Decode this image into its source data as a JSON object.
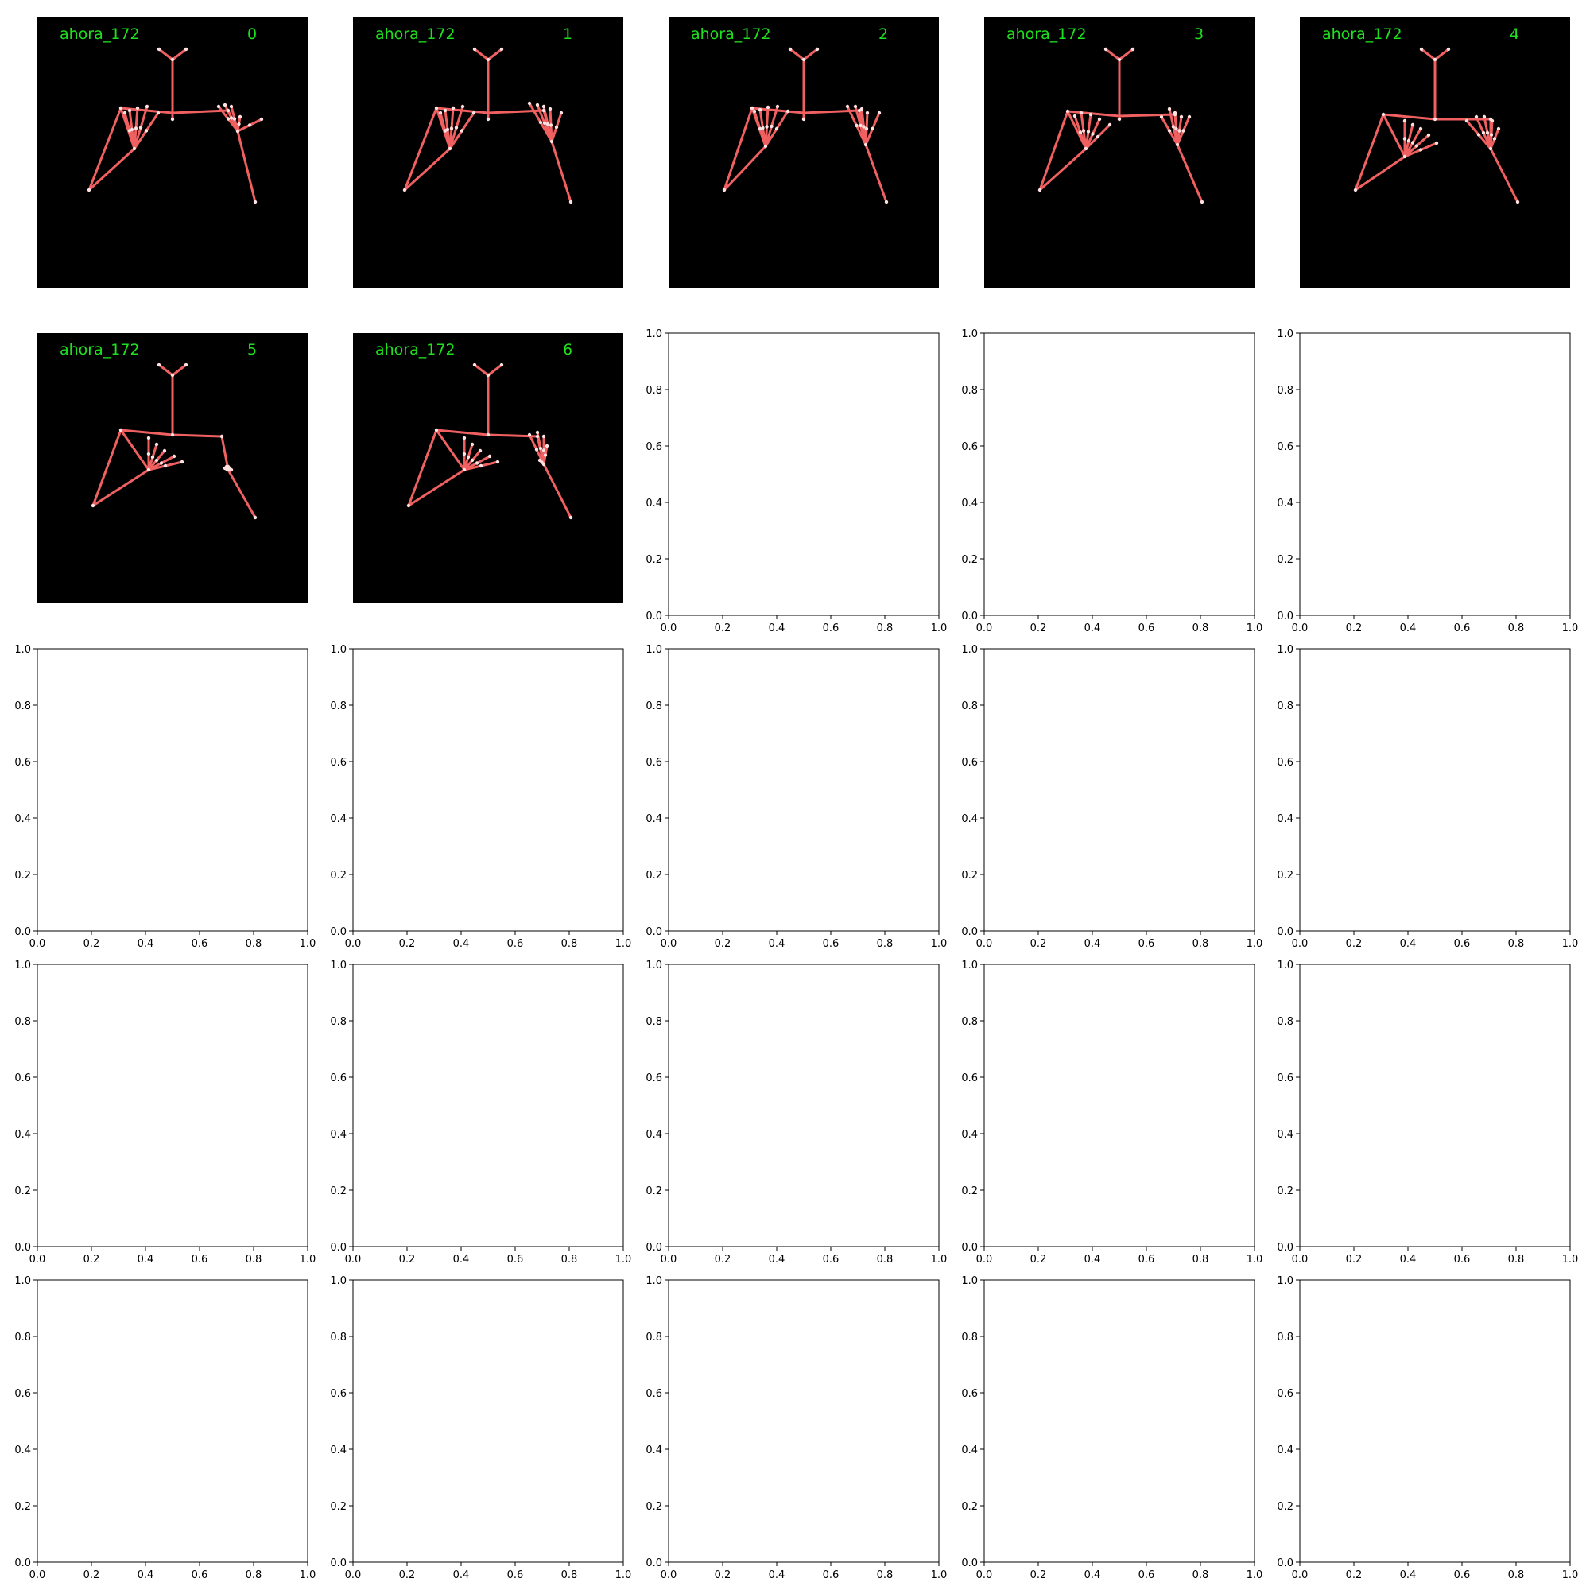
{
  "figure": {
    "background": "#ffffff",
    "grid": {
      "rows": 5,
      "cols": 5
    }
  },
  "frames": [
    {
      "label": "ahora_172",
      "index": "0"
    },
    {
      "label": "ahora_172",
      "index": "1"
    },
    {
      "label": "ahora_172",
      "index": "2"
    },
    {
      "label": "ahora_172",
      "index": "3"
    },
    {
      "label": "ahora_172",
      "index": "4"
    },
    {
      "label": "ahora_172",
      "index": "5"
    },
    {
      "label": "ahora_172",
      "index": "6"
    }
  ],
  "colors": {
    "frame_bg": "#000000",
    "label_text": "#1ee11e",
    "skeleton": "#f06060",
    "joint": "#ffe0e0",
    "axis": "#000000"
  },
  "chart_data": {
    "type": "image-grid",
    "empty_axes": {
      "xlim": [
        0,
        1
      ],
      "ylim": [
        0,
        1
      ],
      "ticks": [
        "0.0",
        "0.2",
        "0.4",
        "0.6",
        "0.8",
        "1.0"
      ],
      "grid": false
    }
  }
}
